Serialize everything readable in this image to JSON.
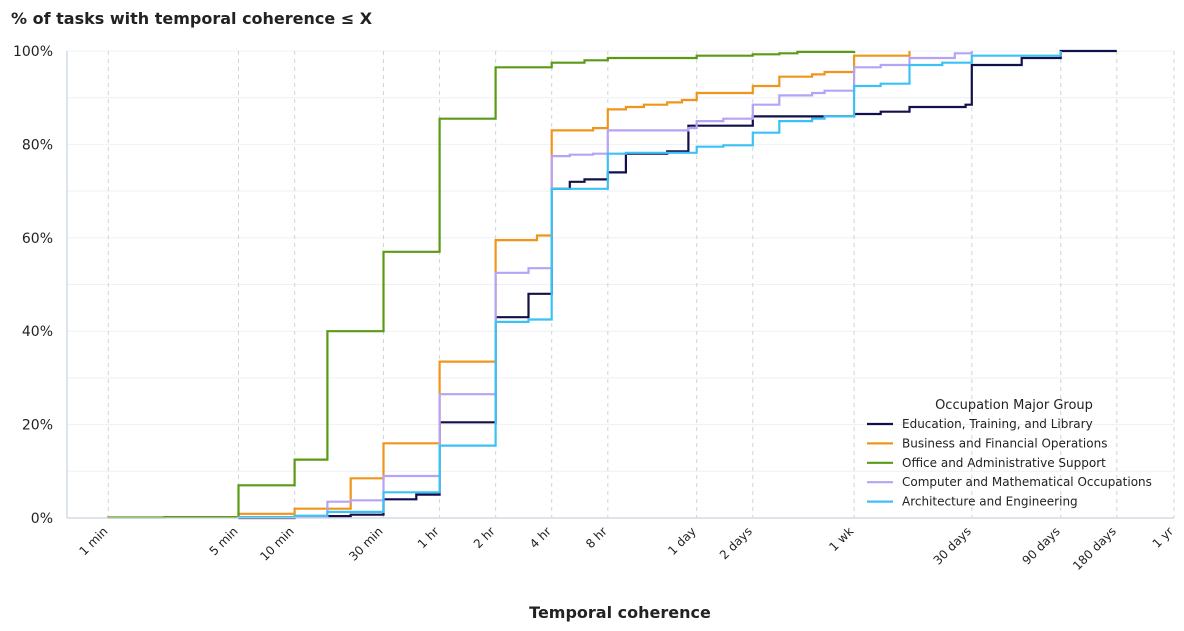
{
  "chart_data": {
    "type": "line",
    "step": true,
    "title": "% of tasks with temporal coherence ≤ X",
    "xlabel": "Temporal coherence",
    "ylabel": "",
    "x_scale": "log",
    "x_unit": "minutes",
    "xlim": [
      0.6,
      525600
    ],
    "ylim": [
      0,
      100
    ],
    "y_ticks": [
      0,
      20,
      40,
      60,
      80,
      100
    ],
    "y_tick_labels": [
      "0%",
      "20%",
      "40%",
      "60%",
      "80%",
      "100%"
    ],
    "x_ticks": [
      {
        "label": "1 min",
        "minutes": 1
      },
      {
        "label": "5 min",
        "minutes": 5
      },
      {
        "label": "10 min",
        "minutes": 10
      },
      {
        "label": "30 min",
        "minutes": 30
      },
      {
        "label": "1 hr",
        "minutes": 60
      },
      {
        "label": "2 hr",
        "minutes": 120
      },
      {
        "label": "4 hr",
        "minutes": 240
      },
      {
        "label": "8 hr",
        "minutes": 480
      },
      {
        "label": "1 day",
        "minutes": 1440
      },
      {
        "label": "2 days",
        "minutes": 2880
      },
      {
        "label": "1 wk",
        "minutes": 10080
      },
      {
        "label": "30 days",
        "minutes": 43200
      },
      {
        "label": "90 days",
        "minutes": 129600
      },
      {
        "label": "180 days",
        "minutes": 259200
      },
      {
        "label": "1 yr",
        "minutes": 525600
      }
    ],
    "grid": true,
    "legend": {
      "title": "Occupation Major Group",
      "placement": "lower-right"
    },
    "series": [
      {
        "name": "Education, Training, and Library",
        "color": "#12104a",
        "points": [
          [
            5,
            0
          ],
          [
            10,
            0.4
          ],
          [
            20,
            0.7
          ],
          [
            30,
            4
          ],
          [
            45,
            5
          ],
          [
            60,
            20.5
          ],
          [
            120,
            43
          ],
          [
            180,
            48
          ],
          [
            240,
            70.5
          ],
          [
            300,
            72
          ],
          [
            360,
            72.5
          ],
          [
            480,
            74
          ],
          [
            600,
            78
          ],
          [
            1000,
            78.5
          ],
          [
            1300,
            84
          ],
          [
            2880,
            86
          ],
          [
            5000,
            86
          ],
          [
            10080,
            86.5
          ],
          [
            14000,
            87
          ],
          [
            20000,
            88
          ],
          [
            40000,
            88.5
          ],
          [
            43200,
            97
          ],
          [
            80000,
            98.5
          ],
          [
            129600,
            100
          ],
          [
            259200,
            100
          ]
        ]
      },
      {
        "name": "Business and Financial Operations",
        "color": "#f0951b",
        "points": [
          [
            5,
            0.9
          ],
          [
            10,
            2
          ],
          [
            20,
            8.5
          ],
          [
            30,
            16
          ],
          [
            60,
            33.5
          ],
          [
            120,
            59.5
          ],
          [
            200,
            60.5
          ],
          [
            240,
            83
          ],
          [
            400,
            83.5
          ],
          [
            480,
            87.5
          ],
          [
            600,
            88
          ],
          [
            750,
            88.5
          ],
          [
            1000,
            89
          ],
          [
            1200,
            89.5
          ],
          [
            1440,
            91
          ],
          [
            2880,
            92.5
          ],
          [
            4000,
            94.5
          ],
          [
            6000,
            95
          ],
          [
            7000,
            95.5
          ],
          [
            10080,
            99
          ],
          [
            20000,
            100
          ]
        ]
      },
      {
        "name": "Office and Administrative Support",
        "color": "#5a9a14",
        "points": [
          [
            1,
            0.1
          ],
          [
            2,
            0.2
          ],
          [
            5,
            7
          ],
          [
            10,
            12.5
          ],
          [
            15,
            40
          ],
          [
            30,
            57
          ],
          [
            60,
            85.5
          ],
          [
            120,
            96.5
          ],
          [
            240,
            97.5
          ],
          [
            360,
            98
          ],
          [
            480,
            98.5
          ],
          [
            1440,
            99
          ],
          [
            2880,
            99.3
          ],
          [
            4000,
            99.5
          ],
          [
            5000,
            99.8
          ],
          [
            10080,
            100
          ]
        ]
      },
      {
        "name": "Computer and Mathematical Occupations",
        "color": "#b5a3f5",
        "points": [
          [
            5,
            0.2
          ],
          [
            15,
            3.5
          ],
          [
            20,
            3.8
          ],
          [
            30,
            9
          ],
          [
            60,
            26.5
          ],
          [
            120,
            52.5
          ],
          [
            180,
            53.5
          ],
          [
            240,
            77.5
          ],
          [
            300,
            77.8
          ],
          [
            400,
            78
          ],
          [
            480,
            83
          ],
          [
            1300,
            83.5
          ],
          [
            1440,
            85
          ],
          [
            2000,
            85.5
          ],
          [
            2880,
            88.5
          ],
          [
            4000,
            90.5
          ],
          [
            6000,
            91
          ],
          [
            7000,
            91.5
          ],
          [
            10080,
            96.5
          ],
          [
            14000,
            97
          ],
          [
            20000,
            98.5
          ],
          [
            35000,
            99.5
          ],
          [
            43200,
            100
          ]
        ]
      },
      {
        "name": "Architecture and Engineering",
        "color": "#3cc1f5",
        "points": [
          [
            5,
            0.2
          ],
          [
            10,
            0.5
          ],
          [
            15,
            1.3
          ],
          [
            30,
            5.5
          ],
          [
            60,
            15.5
          ],
          [
            120,
            42
          ],
          [
            180,
            42.5
          ],
          [
            240,
            70.5
          ],
          [
            480,
            78
          ],
          [
            600,
            78.2
          ],
          [
            1440,
            79.5
          ],
          [
            2000,
            79.8
          ],
          [
            2880,
            82.5
          ],
          [
            4000,
            85
          ],
          [
            6000,
            85.5
          ],
          [
            7000,
            86
          ],
          [
            10080,
            92.5
          ],
          [
            14000,
            93
          ],
          [
            20000,
            97
          ],
          [
            30000,
            97.5
          ],
          [
            43200,
            99
          ],
          [
            129600,
            100
          ]
        ]
      }
    ]
  }
}
